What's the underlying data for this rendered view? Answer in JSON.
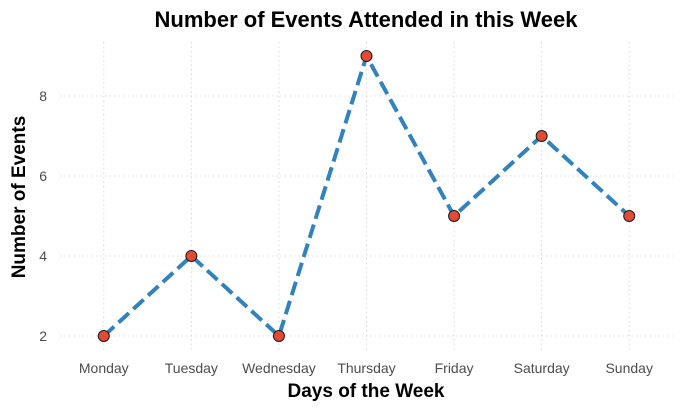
{
  "chart_data": {
    "type": "line",
    "title": "Number of Events Attended in this Week",
    "xlabel": "Days of the Week",
    "ylabel": "Number of Events",
    "categories": [
      "Monday",
      "Tuesday",
      "Wednesday",
      "Thursday",
      "Friday",
      "Saturday",
      "Sunday"
    ],
    "series": [
      {
        "values": [
          2,
          4,
          2,
          9,
          5,
          7,
          5
        ],
        "line_color": "#3182bd",
        "line_style": "dashed",
        "marker_color": "#e34a33"
      }
    ],
    "yticks": [
      2,
      4,
      6,
      8
    ],
    "ylim": [
      1.65,
      9.35
    ],
    "grid": true,
    "legend": "none"
  }
}
